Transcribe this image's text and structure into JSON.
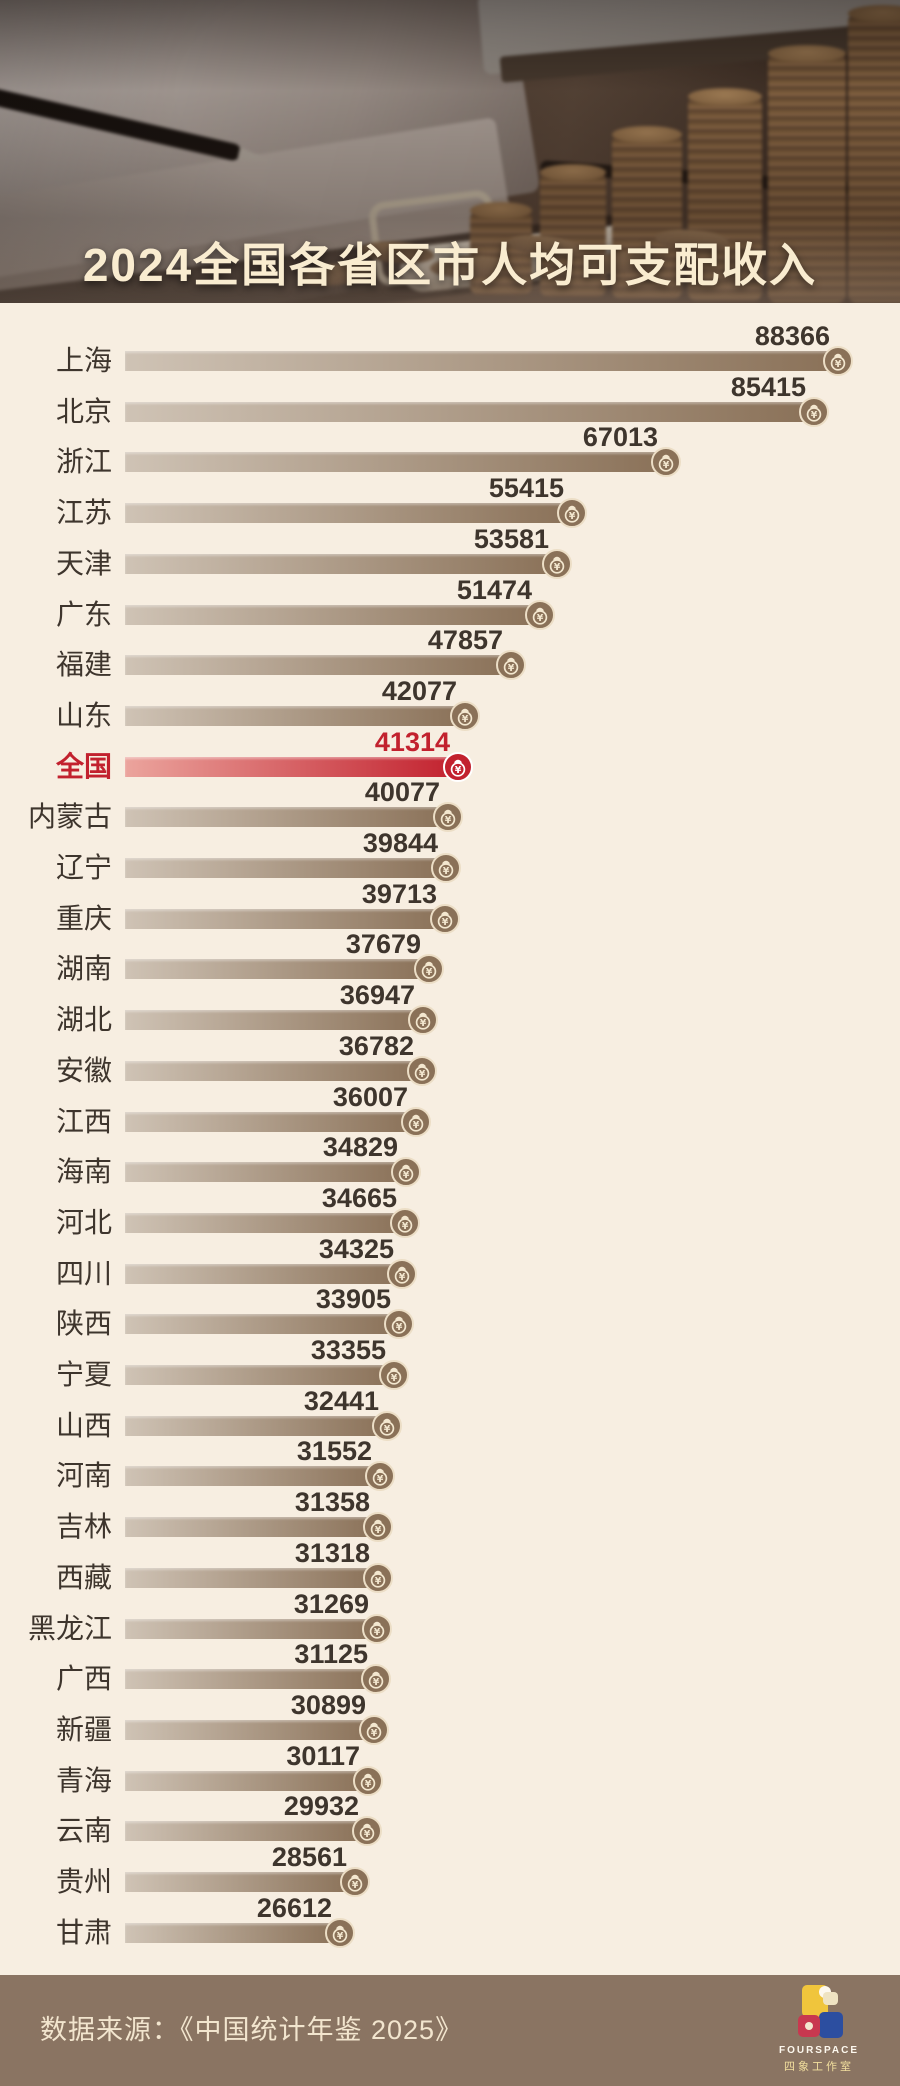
{
  "title": "2024全国各省区市人均可支配收入",
  "footer": {
    "source_label": "数据来源：《中国统计年鉴 2025》",
    "logo_name": "FOURSPACE",
    "logo_subtext": "四象工作室"
  },
  "chart_data": {
    "type": "bar",
    "orientation": "horizontal",
    "title": "2024全国各省区市人均可支配收入",
    "xlabel": "",
    "ylabel": "",
    "value_range": [
      0,
      88366
    ],
    "max_value": 88366,
    "grid": false,
    "legend": "none",
    "highlight_category": "全国",
    "categories": [
      "上海",
      "北京",
      "浙江",
      "江苏",
      "天津",
      "广东",
      "福建",
      "山东",
      "全国",
      "内蒙古",
      "辽宁",
      "重庆",
      "湖南",
      "湖北",
      "安徽",
      "江西",
      "海南",
      "河北",
      "四川",
      "陕西",
      "宁夏",
      "山西",
      "河南",
      "吉林",
      "西藏",
      "黑龙江",
      "广西",
      "新疆",
      "青海",
      "云南",
      "贵州",
      "甘肃"
    ],
    "values": [
      88366,
      85415,
      67013,
      55415,
      53581,
      51474,
      47857,
      42077,
      41314,
      40077,
      39844,
      39713,
      37679,
      36947,
      36782,
      36007,
      34829,
      34665,
      34325,
      33905,
      33355,
      32441,
      31552,
      31358,
      31318,
      31269,
      31125,
      30899,
      30117,
      29932,
      28561,
      26612
    ]
  },
  "icons": {
    "coin_icon": "money-bag-yen-coin"
  },
  "colors": {
    "accent_red": "#c2212e",
    "bar_gradient_start": "#cfc3b5",
    "bar_gradient_end": "#8a7158",
    "background": "#f7eee1",
    "footer_background": "#8a7462",
    "title_color": "#f9ecd0",
    "text_color": "#3e352d"
  }
}
